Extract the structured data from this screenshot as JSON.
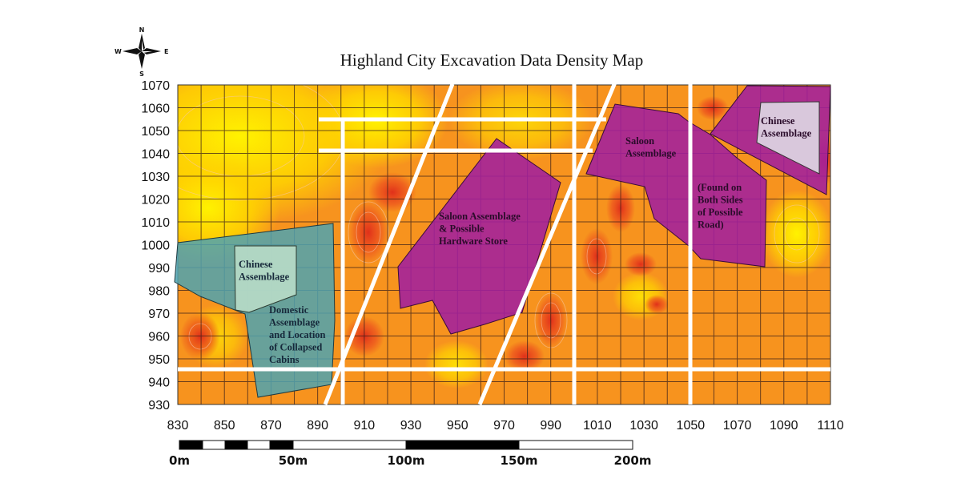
{
  "title": "Highland City Excavation Data Density Map",
  "compass": {
    "n": "N",
    "s": "S",
    "e": "E",
    "w": "W"
  },
  "axes": {
    "x_ticks": [
      "830",
      "850",
      "870",
      "890",
      "910",
      "930",
      "950",
      "970",
      "990",
      "1010",
      "1030",
      "1050",
      "1070",
      "1090",
      "1110"
    ],
    "y_ticks": [
      "1070",
      "1060",
      "1050",
      "1040",
      "1030",
      "1020",
      "1010",
      "1000",
      "990",
      "980",
      "970",
      "960",
      "950",
      "940",
      "930"
    ],
    "x_range": [
      830,
      1110
    ],
    "y_range": [
      930,
      1070
    ],
    "grid_spacing": 10
  },
  "areas": {
    "domestic": {
      "lines": [
        "Domestic",
        "Assemblage",
        "and Location",
        "of Collapsed",
        "Cabins"
      ],
      "color": "#4fa3b0"
    },
    "chinese_west": {
      "lines": [
        "Chinese",
        "Assemblage"
      ],
      "color": "#b8dcc8"
    },
    "saloon_center": {
      "lines": [
        "Saloon Assemblage",
        "& Possible",
        "Hardware Store"
      ],
      "color": "#a21f9e"
    },
    "saloon_east": {
      "lines": [
        "Saloon",
        "Assemblage"
      ],
      "color": "#a21f9e"
    },
    "saloon_east_note": {
      "lines": [
        "(Found on",
        "Both Sides",
        "of Possible",
        "Road)"
      ]
    },
    "chinese_east": {
      "lines": [
        "Chinese",
        "Assemblage"
      ],
      "color": "#d9c8dc"
    }
  },
  "scale_bar": {
    "labels": [
      "0m",
      "50m",
      "100m",
      "150m",
      "200m"
    ]
  },
  "colors": {
    "low": "#ffee00",
    "mid": "#f7941d",
    "high": "#e8401c"
  }
}
